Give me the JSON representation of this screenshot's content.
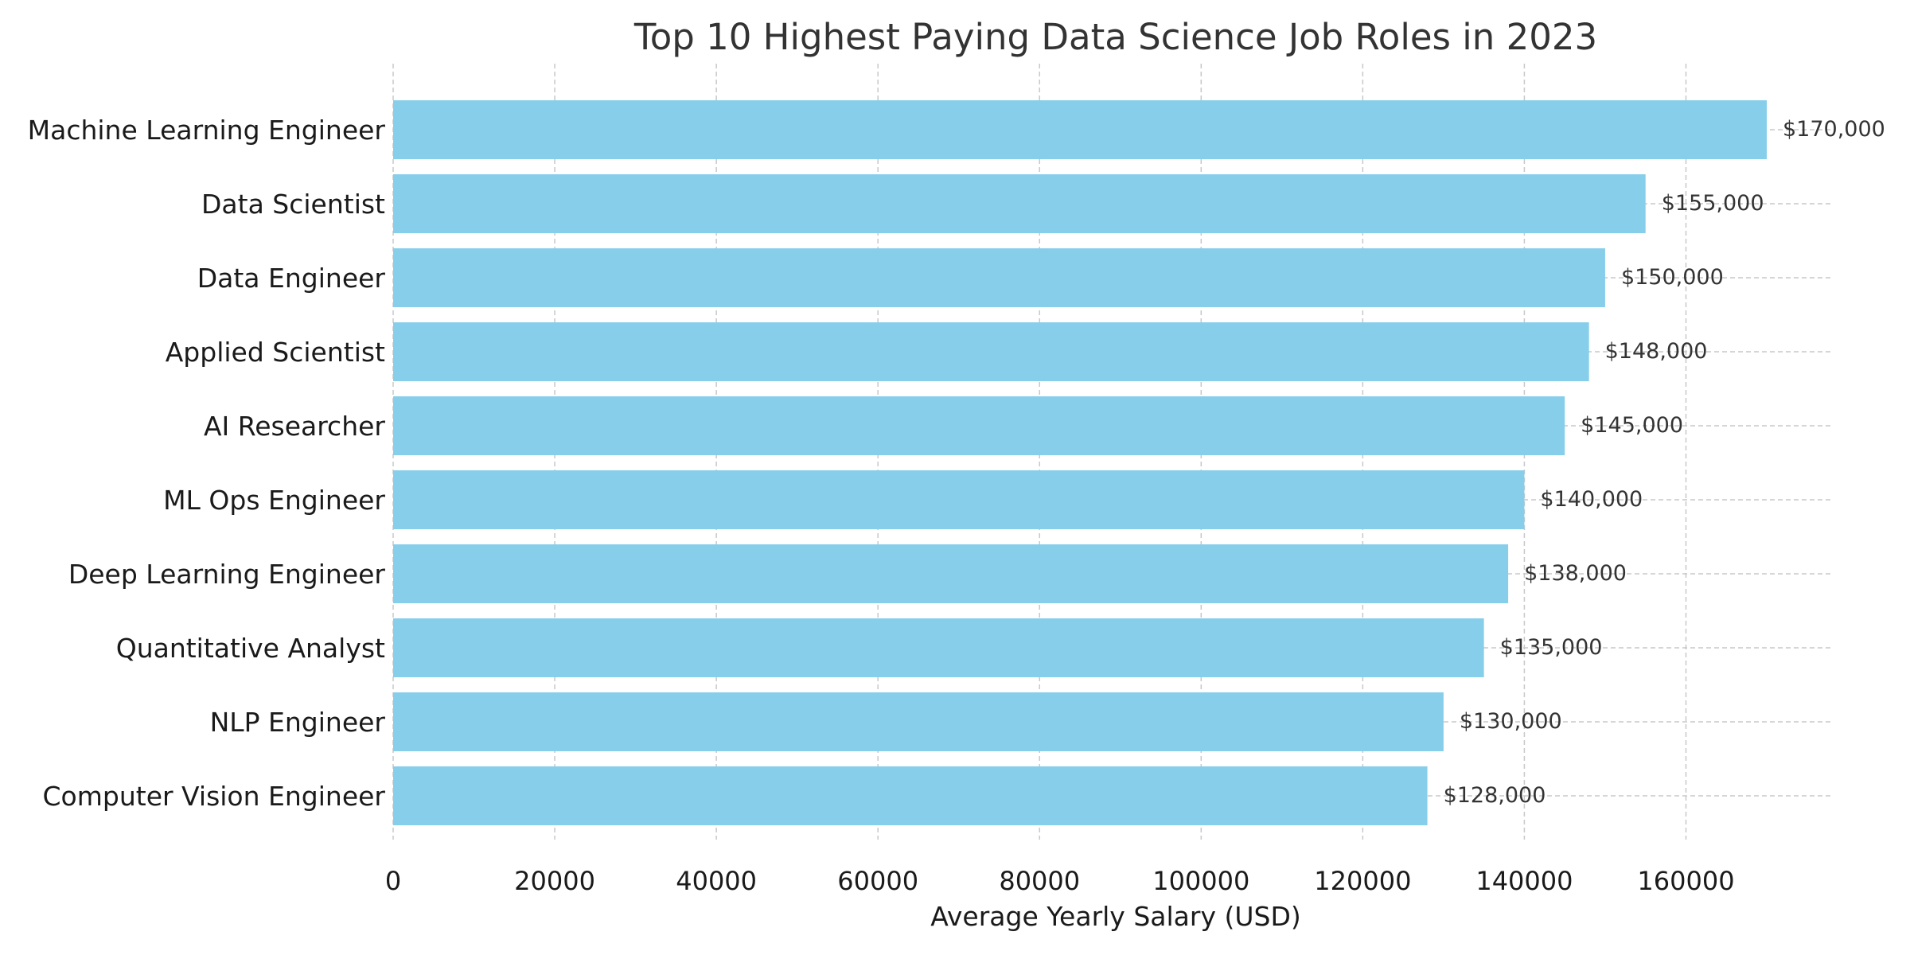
{
  "chart_data": {
    "type": "bar",
    "orientation": "horizontal",
    "title": "Top 10 Highest Paying Data Science Job Roles in 2023",
    "xlabel": "Average Yearly Salary (USD)",
    "ylabel": "",
    "categories": [
      "Machine Learning Engineer",
      "Data Scientist",
      "Data Engineer",
      "Applied Scientist",
      "AI Researcher",
      "ML Ops Engineer",
      "Deep Learning Engineer",
      "Quantitative Analyst",
      "NLP Engineer",
      "Computer Vision Engineer"
    ],
    "values": [
      170000,
      155000,
      150000,
      148000,
      145000,
      140000,
      138000,
      135000,
      130000,
      128000
    ],
    "value_labels": [
      "$170,000",
      "$155,000",
      "$150,000",
      "$148,000",
      "$145,000",
      "$140,000",
      "$138,000",
      "$135,000",
      "$130,000",
      "$128,000"
    ],
    "xticks": [
      0,
      20000,
      40000,
      60000,
      80000,
      100000,
      120000,
      140000,
      160000
    ],
    "xtick_labels": [
      "0",
      "20000",
      "40000",
      "60000",
      "80000",
      "100000",
      "120000",
      "140000",
      "160000"
    ],
    "xlim": [
      0,
      178000
    ],
    "grid": true,
    "bar_color": "#87ceeb",
    "grid_color": "#c8c8c8"
  }
}
